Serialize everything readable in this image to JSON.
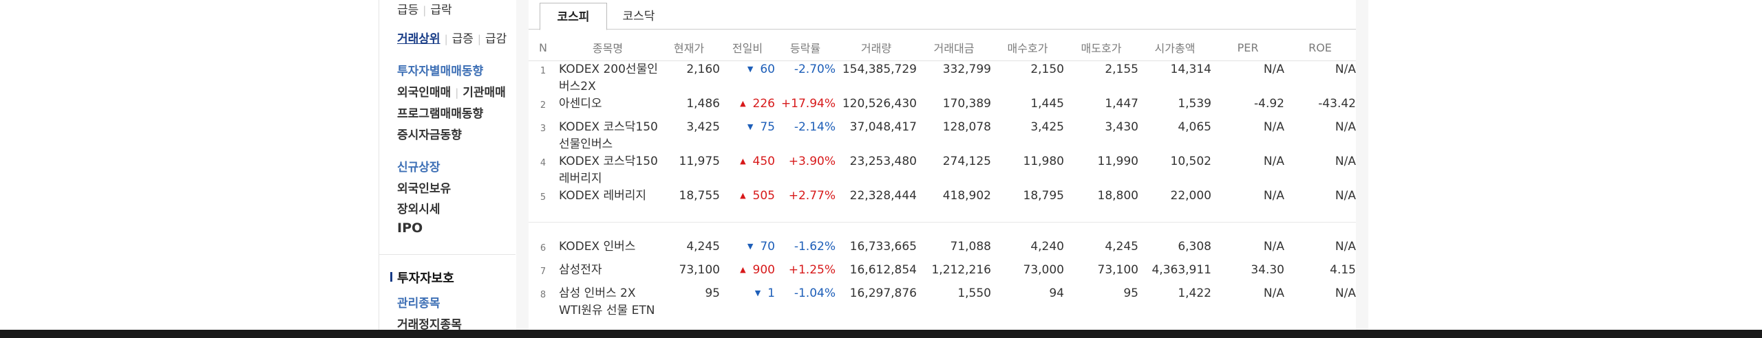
{
  "sidebar": {
    "row1": [
      "급등",
      "급락"
    ],
    "row2": [
      "거래상위",
      "급증",
      "급감"
    ],
    "investor_trend": "투자자별매매동향",
    "row4": [
      "외국인매매",
      "기관매매"
    ],
    "program_trading": "프로그램매매동향",
    "deposit_trend": "증시자금동향",
    "new_listing": "신규상장",
    "foreign_holding": "외국인보유",
    "otc_price": "장외시세",
    "ipo": "IPO",
    "investor_protection": "투자자보호",
    "managed_stocks": "관리종목",
    "halted_stocks": "거래정지종목"
  },
  "tabs": [
    "코스피",
    "코스닥"
  ],
  "table": {
    "headers": [
      "N",
      "종목명",
      "현재가",
      "전일비",
      "등락률",
      "거래량",
      "거래대금",
      "매수호가",
      "매도호가",
      "시가총액",
      "PER",
      "ROE"
    ],
    "rows": [
      {
        "n": "1",
        "name": "KODEX 200선물인버스2X",
        "price": "2,160",
        "dir": "down",
        "change": "60",
        "rate": "-2.70%",
        "volume": "154,385,729",
        "amount": "332,799",
        "bid": "2,150",
        "ask": "2,155",
        "cap": "14,314",
        "per": "N/A",
        "roe": "N/A"
      },
      {
        "n": "2",
        "name": "아센디오",
        "price": "1,486",
        "dir": "up",
        "change": "226",
        "rate": "+17.94%",
        "volume": "120,526,430",
        "amount": "170,389",
        "bid": "1,445",
        "ask": "1,447",
        "cap": "1,539",
        "per": "-4.92",
        "roe": "-43.42"
      },
      {
        "n": "3",
        "name": "KODEX 코스닥150선물인버스",
        "price": "3,425",
        "dir": "down",
        "change": "75",
        "rate": "-2.14%",
        "volume": "37,048,417",
        "amount": "128,078",
        "bid": "3,425",
        "ask": "3,430",
        "cap": "4,065",
        "per": "N/A",
        "roe": "N/A"
      },
      {
        "n": "4",
        "name": "KODEX 코스닥150레버리지",
        "price": "11,975",
        "dir": "up",
        "change": "450",
        "rate": "+3.90%",
        "volume": "23,253,480",
        "amount": "274,125",
        "bid": "11,980",
        "ask": "11,990",
        "cap": "10,502",
        "per": "N/A",
        "roe": "N/A"
      },
      {
        "n": "5",
        "name": "KODEX 레버리지",
        "price": "18,755",
        "dir": "up",
        "change": "505",
        "rate": "+2.77%",
        "volume": "22,328,444",
        "amount": "418,902",
        "bid": "18,795",
        "ask": "18,800",
        "cap": "22,000",
        "per": "N/A",
        "roe": "N/A"
      },
      {
        "n": "6",
        "name": "KODEX 인버스",
        "price": "4,245",
        "dir": "down",
        "change": "70",
        "rate": "-1.62%",
        "volume": "16,733,665",
        "amount": "71,088",
        "bid": "4,240",
        "ask": "4,245",
        "cap": "6,308",
        "per": "N/A",
        "roe": "N/A"
      },
      {
        "n": "7",
        "name": "삼성전자",
        "price": "73,100",
        "dir": "up",
        "change": "900",
        "rate": "+1.25%",
        "volume": "16,612,854",
        "amount": "1,212,216",
        "bid": "73,000",
        "ask": "73,100",
        "cap": "4,363,911",
        "per": "34.30",
        "roe": "4.15"
      },
      {
        "n": "8",
        "name": "삼성 인버스 2X WTI원유 선물 ETN",
        "price": "95",
        "dir": "down",
        "change": "1",
        "rate": "-1.04%",
        "volume": "16,297,876",
        "amount": "1,550",
        "bid": "94",
        "ask": "95",
        "cap": "1,422",
        "per": "N/A",
        "roe": "N/A"
      }
    ]
  },
  "colors": {
    "up": "#d7191a",
    "down": "#1d5eb8",
    "link": "#3d6fb5"
  },
  "icons": {
    "up": "triangle-up-icon",
    "down": "triangle-down-icon"
  }
}
